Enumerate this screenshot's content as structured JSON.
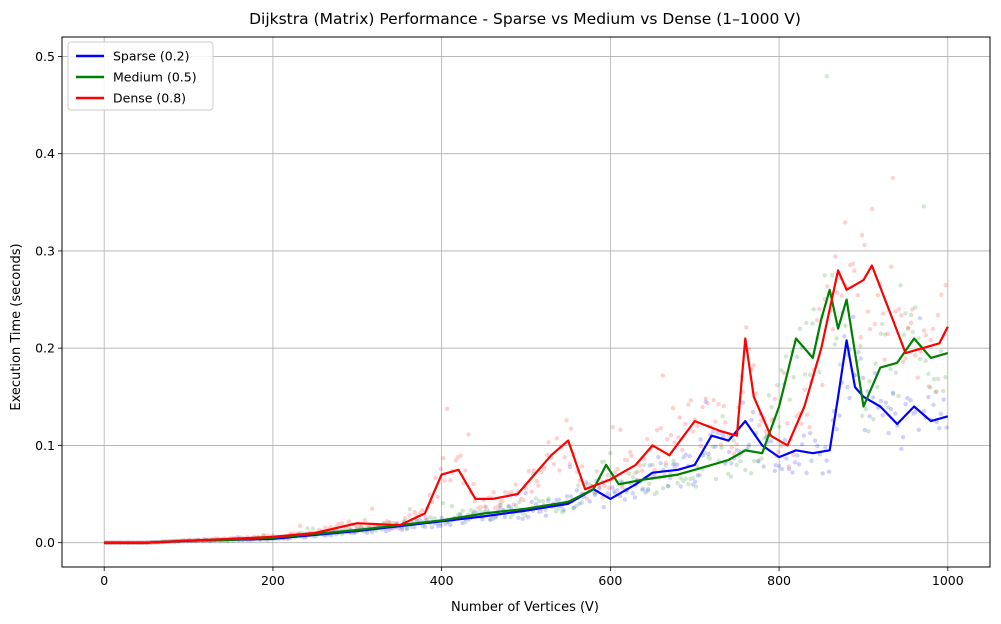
{
  "chart_data": {
    "type": "line",
    "title": "Dijkstra (Matrix) Performance - Sparse vs Medium vs Dense (1–1000 V)",
    "xlabel": "Number of Vertices (V)",
    "ylabel": "Execution Time (seconds)",
    "xlim": [
      -50,
      1050
    ],
    "ylim": [
      -0.025,
      0.52
    ],
    "xticks": [
      0,
      200,
      400,
      600,
      800,
      1000
    ],
    "yticks": [
      0.0,
      0.1,
      0.2,
      0.3,
      0.4,
      0.5
    ],
    "xtick_labels": [
      "0",
      "200",
      "400",
      "600",
      "800",
      "1000"
    ],
    "ytick_labels": [
      "0.0",
      "0.1",
      "0.2",
      "0.3",
      "0.4",
      "0.5"
    ],
    "grid": true,
    "legend_position": "top-left",
    "series": [
      {
        "name": "Sparse (0.2)",
        "color": "#0000ff",
        "x": [
          0,
          50,
          100,
          150,
          200,
          250,
          300,
          350,
          400,
          450,
          500,
          550,
          580,
          600,
          630,
          650,
          680,
          700,
          720,
          740,
          760,
          780,
          800,
          820,
          840,
          860,
          870,
          880,
          890,
          900,
          920,
          940,
          960,
          980,
          1000
        ],
        "y": [
          0.0,
          0.0,
          0.002,
          0.003,
          0.004,
          0.008,
          0.012,
          0.017,
          0.022,
          0.027,
          0.033,
          0.04,
          0.055,
          0.045,
          0.06,
          0.072,
          0.075,
          0.08,
          0.11,
          0.105,
          0.125,
          0.1,
          0.088,
          0.095,
          0.092,
          0.095,
          0.15,
          0.208,
          0.16,
          0.15,
          0.14,
          0.122,
          0.14,
          0.125,
          0.13
        ]
      },
      {
        "name": "Medium (0.5)",
        "color": "#008000",
        "x": [
          0,
          50,
          100,
          150,
          200,
          250,
          300,
          350,
          400,
          450,
          500,
          550,
          580,
          595,
          610,
          640,
          680,
          700,
          720,
          740,
          760,
          780,
          800,
          820,
          840,
          850,
          860,
          870,
          880,
          900,
          920,
          940,
          960,
          980,
          1000
        ],
        "y": [
          0.0,
          0.0,
          0.002,
          0.003,
          0.005,
          0.009,
          0.013,
          0.018,
          0.023,
          0.03,
          0.035,
          0.042,
          0.055,
          0.08,
          0.06,
          0.065,
          0.07,
          0.075,
          0.08,
          0.085,
          0.095,
          0.092,
          0.14,
          0.21,
          0.19,
          0.23,
          0.26,
          0.22,
          0.25,
          0.14,
          0.18,
          0.185,
          0.21,
          0.19,
          0.195
        ]
      },
      {
        "name": "Dense (0.8)",
        "color": "#ff0000",
        "x": [
          0,
          50,
          100,
          150,
          200,
          250,
          300,
          350,
          380,
          400,
          420,
          440,
          460,
          490,
          510,
          530,
          550,
          570,
          600,
          630,
          650,
          670,
          700,
          730,
          750,
          760,
          770,
          790,
          810,
          830,
          850,
          870,
          880,
          900,
          910,
          930,
          950,
          970,
          990,
          1000
        ],
        "y": [
          0.0,
          0.0,
          0.002,
          0.004,
          0.006,
          0.01,
          0.02,
          0.018,
          0.03,
          0.07,
          0.075,
          0.045,
          0.045,
          0.05,
          0.07,
          0.09,
          0.105,
          0.055,
          0.065,
          0.08,
          0.1,
          0.09,
          0.125,
          0.115,
          0.11,
          0.21,
          0.15,
          0.11,
          0.1,
          0.14,
          0.2,
          0.28,
          0.26,
          0.27,
          0.285,
          0.24,
          0.195,
          0.2,
          0.205,
          0.222
        ]
      }
    ]
  }
}
